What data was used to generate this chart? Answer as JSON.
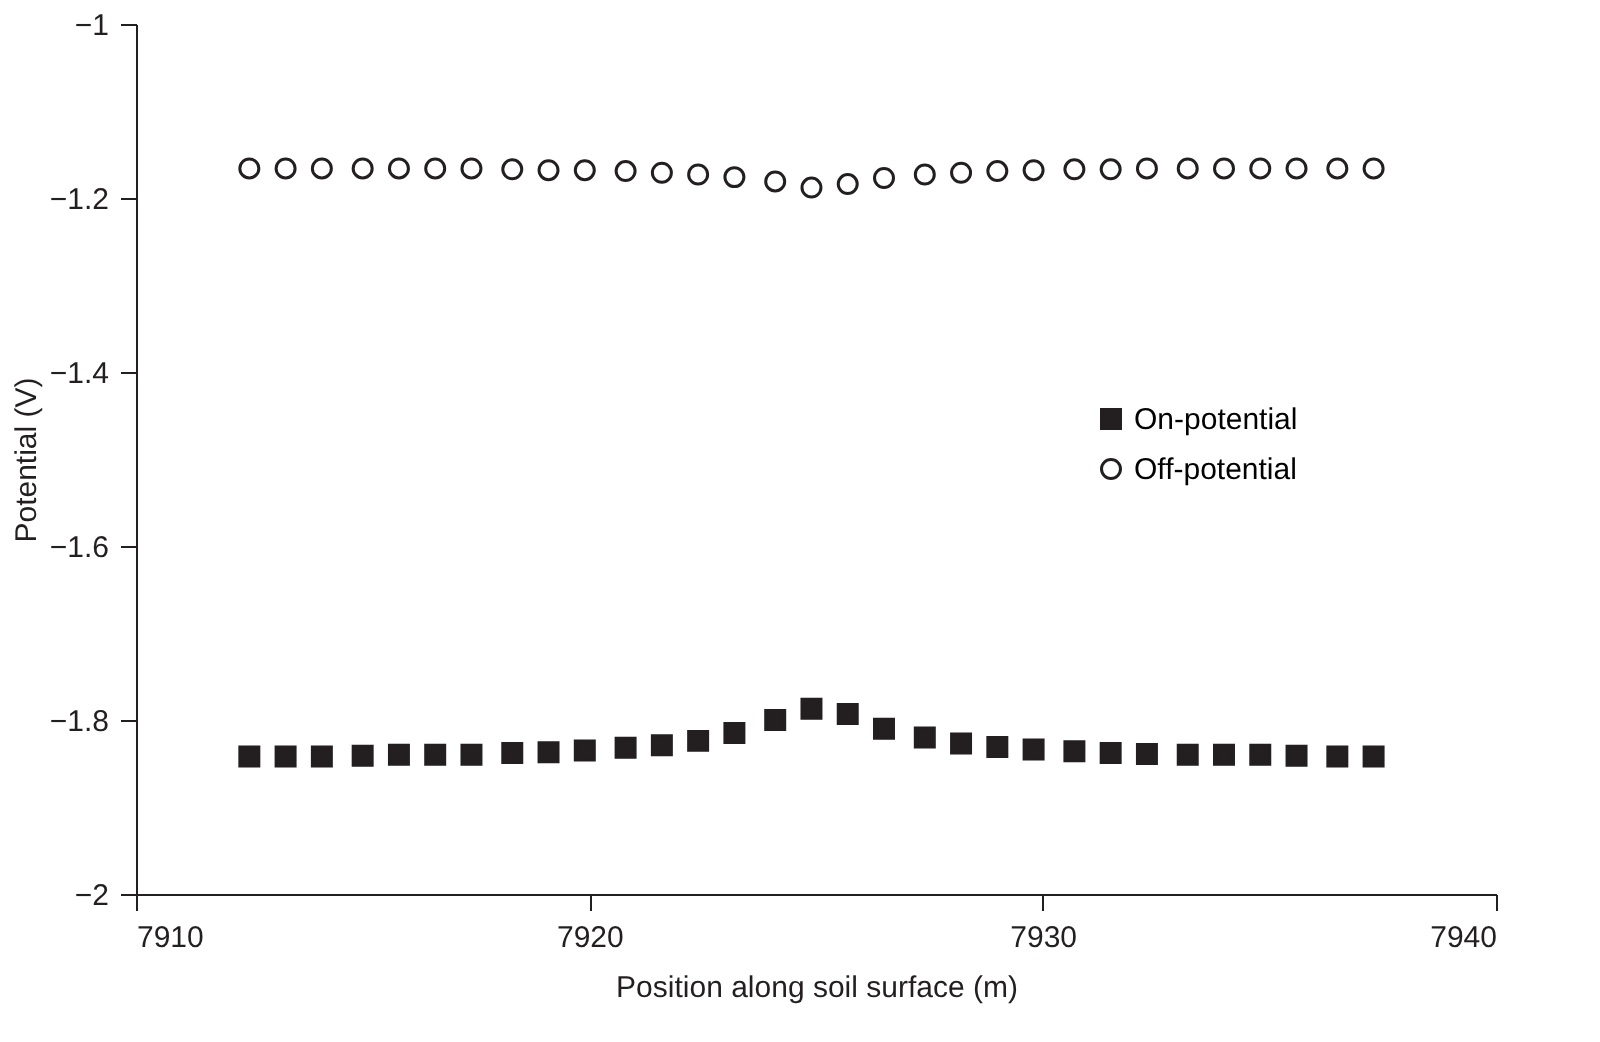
{
  "chart_data": {
    "type": "scatter",
    "xlabel": "Position along soil surface (m)",
    "ylabel": "Potential (V)",
    "x": [
      7912.5,
      7913.3,
      7914.1,
      7915.0,
      7915.8,
      7916.6,
      7917.4,
      7918.3,
      7919.1,
      7919.9,
      7920.8,
      7921.6,
      7922.4,
      7923.2,
      7924.1,
      7924.9,
      7925.7,
      7926.5,
      7927.4,
      7928.2,
      7929.0,
      7929.8,
      7930.7,
      7931.5,
      7932.3,
      7933.2,
      7934.0,
      7934.8,
      7935.6,
      7936.5,
      7937.3
    ],
    "series": [
      {
        "name": "On-potential",
        "color": "#231f20",
        "marker": "square",
        "values": [
          -1.842,
          -1.842,
          -1.842,
          -1.841,
          -1.84,
          -1.84,
          -1.84,
          -1.838,
          -1.837,
          -1.835,
          -1.832,
          -1.829,
          -1.824,
          -1.815,
          -1.8,
          -1.787,
          -1.793,
          -1.81,
          -1.82,
          -1.827,
          -1.831,
          -1.834,
          -1.836,
          -1.838,
          -1.839,
          -1.84,
          -1.84,
          -1.84,
          -1.841,
          -1.842,
          -1.842
        ]
      },
      {
        "name": "Off-potential",
        "color": "#231f20",
        "marker": "circle",
        "values": [
          -1.166,
          -1.166,
          -1.166,
          -1.166,
          -1.166,
          -1.166,
          -1.166,
          -1.167,
          -1.168,
          -1.168,
          -1.169,
          -1.171,
          -1.173,
          -1.176,
          -1.181,
          -1.188,
          -1.184,
          -1.177,
          -1.173,
          -1.171,
          -1.169,
          -1.168,
          -1.167,
          -1.167,
          -1.166,
          -1.166,
          -1.166,
          -1.166,
          -1.166,
          -1.166,
          -1.166
        ]
      }
    ],
    "xlim": [
      7910,
      7940
    ],
    "xticks": [
      7910,
      7920,
      7930,
      7940
    ],
    "ylim": [
      -2,
      -1
    ],
    "yticks": [
      -2,
      -1.8,
      -1.6,
      -1.4,
      -1.2,
      -1
    ],
    "grid": false,
    "legend": "right"
  }
}
